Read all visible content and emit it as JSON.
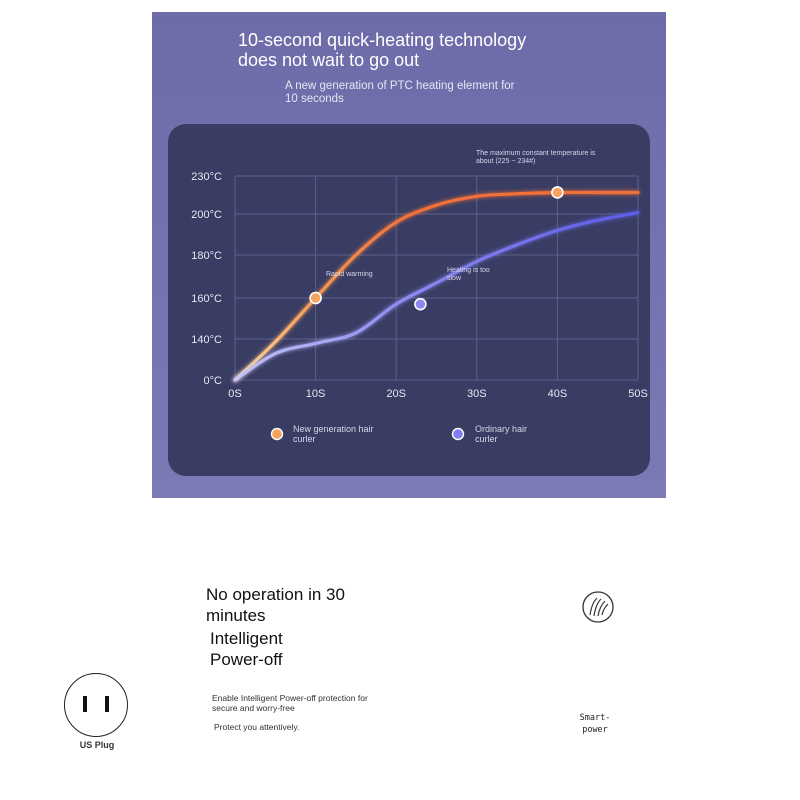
{
  "banner": {
    "headline_line1": "10-second quick-heating technology",
    "headline_line2": "does not wait to go out",
    "subline_line1": "A new generation of PTC heating element for",
    "subline_line2": "10 seconds"
  },
  "chart_data": {
    "type": "line",
    "xlabel": "",
    "ylabel": "",
    "x_ticks": [
      "0S",
      "10S",
      "20S",
      "30S",
      "40S",
      "50S"
    ],
    "y_ticks": [
      "0°C",
      "140°C",
      "160°C",
      "180°C",
      "200°C",
      "230°C"
    ],
    "x": [
      0,
      5,
      10,
      15,
      20,
      25,
      30,
      35,
      40,
      45,
      50
    ],
    "series": [
      {
        "name": "New generation hair curler",
        "color": "#f07a3c",
        "values": [
          0,
          130,
          160,
          180,
          196,
          207,
          214,
          216,
          217,
          217,
          217
        ]
      },
      {
        "name": "Ordinary hair curler",
        "color": "#6f6ee8",
        "values": [
          0,
          90,
          125,
          143,
          157,
          167,
          177,
          185,
          192,
          197,
          201
        ]
      }
    ],
    "annotations": [
      {
        "text": "Rapid warming",
        "x": 10,
        "y": 160,
        "series": 0
      },
      {
        "text_line1": "Heating is too",
        "text_line2": "slow",
        "x": 23,
        "y": 157,
        "series": 1
      },
      {
        "text_line1": "The maximum constant temperature is",
        "text_line2": "about (225 ~ 234#)",
        "x": 40,
        "y": 217,
        "series": 0
      }
    ],
    "legend": [
      {
        "line1": "New generation hair",
        "line2": "curler",
        "color": "#f5a25a"
      },
      {
        "line1": "Ordinary hair",
        "line2": "curler",
        "color": "#7f7ef0"
      }
    ],
    "grid": true,
    "legend_position": "bottom"
  },
  "lower": {
    "title_line1": "No operation in 30",
    "title_line2": "minutes",
    "feature_line1": "Intelligent",
    "feature_line2": "Power-off",
    "desc_line1": "Enable Intelligent Power-off protection for",
    "desc_line2": "secure and worry-free",
    "protect": "Protect you attentively.",
    "plug_label": "US Plug",
    "smart_line1": "Smart-",
    "smart_line2": "power",
    "icons": [
      "us-plug-icon",
      "hair-care-icon"
    ]
  }
}
